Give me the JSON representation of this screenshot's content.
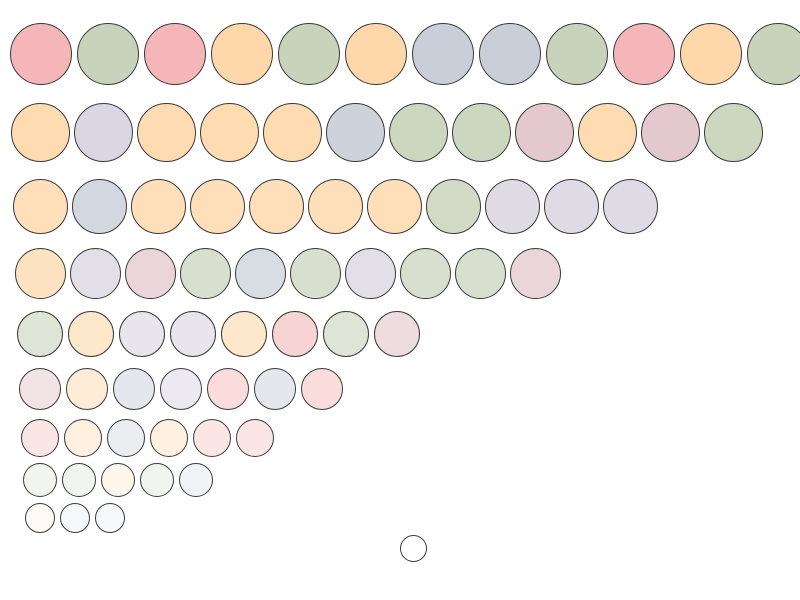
{
  "palette": {
    "pink": "#f4b6b8",
    "green": "#c9d3bb",
    "orange": "#fed8aa",
    "blue": "#c9ced8",
    "lavender": "#d8d3df",
    "mauve": "#e1c4cb",
    "white": "#ffffff"
  },
  "rows": [
    {
      "colors": [
        "pink",
        "green",
        "pink",
        "orange",
        "green",
        "orange",
        "blue",
        "blue",
        "green",
        "pink",
        "orange",
        "green"
      ],
      "opacity": 1.0
    },
    {
      "colors": [
        "orange",
        "lavender",
        "orange",
        "orange",
        "orange",
        "blue",
        "green",
        "green",
        "mauve",
        "orange",
        "mauve",
        "green"
      ],
      "opacity": 0.92
    },
    {
      "colors": [
        "orange",
        "blue",
        "orange",
        "orange",
        "orange",
        "orange",
        "orange",
        "green",
        "lavender",
        "lavender",
        "lavender"
      ],
      "opacity": 0.82
    },
    {
      "colors": [
        "orange",
        "lavender",
        "mauve",
        "green",
        "blue",
        "green",
        "lavender",
        "green",
        "green",
        "mauve"
      ],
      "opacity": 0.72
    },
    {
      "colors": [
        "green",
        "orange",
        "lavender",
        "lavender",
        "orange",
        "pink",
        "green",
        "mauve"
      ],
      "opacity": 0.6
    },
    {
      "colors": [
        "mauve",
        "orange",
        "blue",
        "lavender",
        "pink",
        "blue",
        "pink"
      ],
      "opacity": 0.48
    },
    {
      "colors": [
        "pink",
        "orange",
        "blue",
        "orange",
        "pink",
        "pink"
      ],
      "opacity": 0.36
    },
    {
      "colors": [
        "green",
        "green",
        "orange",
        "green",
        "blue"
      ],
      "opacity": 0.24
    },
    {
      "colors": [
        "orange",
        "blue",
        "blue"
      ],
      "opacity": 0.14
    },
    {
      "colors": [
        "white"
      ],
      "opacity": 1.0
    }
  ]
}
